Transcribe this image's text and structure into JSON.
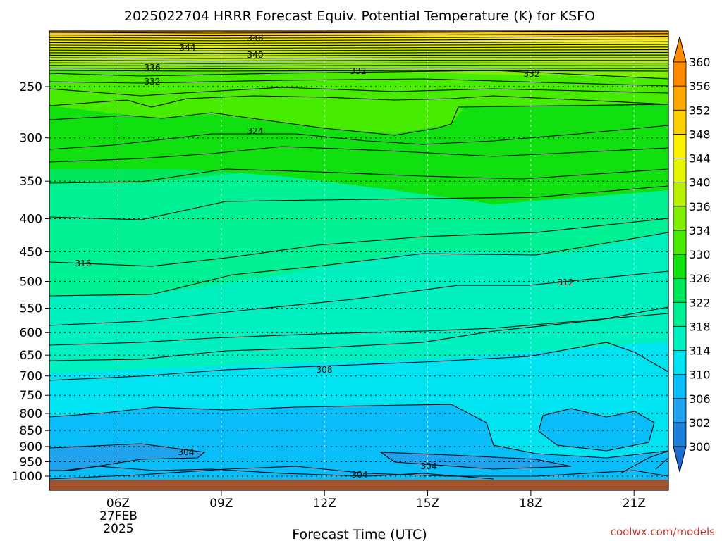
{
  "chart_data": {
    "type": "heatmap",
    "title": "2025022704 HRRR Forecast Equiv. Potential Temperature (K) for KSFO",
    "xlabel": "Forecast Time (UTC)",
    "credit": "coolwx.com/models",
    "x_ticks": [
      {
        "label": "06Z",
        "hour": 6
      },
      {
        "label": "09Z",
        "hour": 9
      },
      {
        "label": "12Z",
        "hour": 12
      },
      {
        "label": "15Z",
        "hour": 15
      },
      {
        "label": "18Z",
        "hour": 18
      },
      {
        "label": "21Z",
        "hour": 21
      }
    ],
    "x_subtitle": [
      "27FEB",
      "2025"
    ],
    "xlim_hours": [
      4,
      22
    ],
    "y_ticks": [
      250,
      300,
      350,
      400,
      450,
      500,
      550,
      600,
      650,
      700,
      750,
      800,
      850,
      900,
      950,
      1000
    ],
    "ylim_hpa": [
      200,
      1025
    ],
    "y_scale": "log-pressure",
    "colorbar": {
      "levels": [
        300,
        302,
        306,
        310,
        314,
        318,
        322,
        326,
        330,
        334,
        336,
        340,
        344,
        348,
        352,
        356,
        360
      ],
      "labels": [
        "300",
        "302",
        "306",
        "310",
        "314",
        "318",
        "322",
        "326",
        "330",
        "334",
        "336",
        "340",
        "344",
        "348",
        "352",
        "356",
        "360"
      ],
      "colors": [
        "#1a7fd9",
        "#20a3ec",
        "#08bdf8",
        "#00e3f0",
        "#00f0c0",
        "#00f094",
        "#00e85a",
        "#10e010",
        "#48ec00",
        "#80f000",
        "#b8f000",
        "#e6f500",
        "#fff200",
        "#ffd000",
        "#ffa800",
        "#ff8a00"
      ]
    },
    "isotherm_labels": [
      "348",
      "344",
      "340",
      "336",
      "332",
      "332",
      "332",
      "324",
      "316",
      "312",
      "308",
      "304",
      "304",
      "304"
    ],
    "ground_color": "#a0522d"
  }
}
